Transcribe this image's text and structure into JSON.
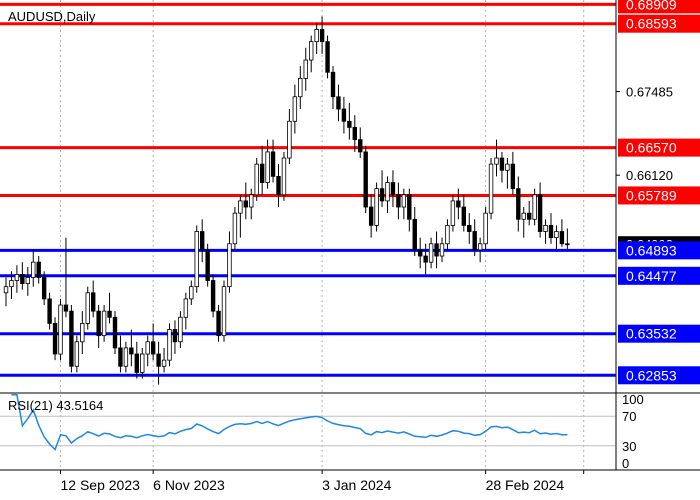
{
  "chart_data": {
    "type": "candlestick",
    "symbol_label": "AUDUSD,Daily",
    "colors": {
      "candle": "#000000",
      "resistance_line": "#ff0000",
      "support_line": "#0000ff",
      "rsi_line": "#1e88e5",
      "rsi_level_line": "#c0c0c0",
      "grid": "#b0b0b0",
      "level_label_text": "#ffffff",
      "price_tag_bg": "#000000"
    },
    "x_axis": {
      "ticks": [
        {
          "index": 10,
          "label": "12 Sep 2023"
        },
        {
          "index": 27,
          "label": "6 Nov 2023"
        },
        {
          "index": 58,
          "label": "3 Jan 2024"
        },
        {
          "index": 88,
          "label": "28 Feb 2024"
        },
        {
          "index": 106,
          "label": ""
        }
      ]
    },
    "price_axis": {
      "ylim": [
        0.6258,
        0.6898
      ],
      "labels": [
        "0.67485",
        "0.66120"
      ],
      "current_price_tag": "0.64993"
    },
    "horizontal_levels": [
      {
        "value": 0.68909,
        "label": "0.68909",
        "kind": "resistance"
      },
      {
        "value": 0.68593,
        "label": "0.68593",
        "kind": "resistance"
      },
      {
        "value": 0.6657,
        "label": "0.66570",
        "kind": "resistance"
      },
      {
        "value": 0.65789,
        "label": "0.65789",
        "kind": "resistance"
      },
      {
        "value": 0.64893,
        "label": "0.64893",
        "kind": "support"
      },
      {
        "value": 0.64477,
        "label": "0.64477",
        "kind": "support"
      },
      {
        "value": 0.63532,
        "label": "0.63532",
        "kind": "support"
      },
      {
        "value": 0.62853,
        "label": "0.62853",
        "kind": "support"
      }
    ],
    "candles_ohlc": [
      [
        0.642,
        0.6445,
        0.6398,
        0.643
      ],
      [
        0.643,
        0.6455,
        0.641,
        0.644
      ],
      [
        0.644,
        0.6465,
        0.642,
        0.645
      ],
      [
        0.645,
        0.647,
        0.6425,
        0.6435
      ],
      [
        0.6435,
        0.6462,
        0.6415,
        0.6445
      ],
      [
        0.6445,
        0.649,
        0.643,
        0.647
      ],
      [
        0.647,
        0.648,
        0.6435,
        0.6445
      ],
      [
        0.6445,
        0.6455,
        0.64,
        0.641
      ],
      [
        0.641,
        0.642,
        0.636,
        0.637
      ],
      [
        0.637,
        0.638,
        0.631,
        0.632
      ],
      [
        0.632,
        0.641,
        0.631,
        0.64
      ],
      [
        0.64,
        0.651,
        0.638,
        0.639
      ],
      [
        0.639,
        0.64,
        0.629,
        0.63
      ],
      [
        0.63,
        0.635,
        0.629,
        0.634
      ],
      [
        0.634,
        0.639,
        0.632,
        0.637
      ],
      [
        0.637,
        0.643,
        0.636,
        0.642
      ],
      [
        0.642,
        0.644,
        0.638,
        0.639
      ],
      [
        0.639,
        0.64,
        0.633,
        0.635
      ],
      [
        0.635,
        0.64,
        0.634,
        0.639
      ],
      [
        0.639,
        0.642,
        0.637,
        0.638
      ],
      [
        0.638,
        0.639,
        0.632,
        0.633
      ],
      [
        0.633,
        0.635,
        0.629,
        0.63
      ],
      [
        0.63,
        0.634,
        0.629,
        0.633
      ],
      [
        0.633,
        0.636,
        0.63,
        0.632
      ],
      [
        0.632,
        0.634,
        0.628,
        0.629
      ],
      [
        0.629,
        0.633,
        0.628,
        0.632
      ],
      [
        0.632,
        0.635,
        0.63,
        0.634
      ],
      [
        0.634,
        0.637,
        0.631,
        0.632
      ],
      [
        0.632,
        0.634,
        0.627,
        0.63
      ],
      [
        0.63,
        0.633,
        0.629,
        0.631
      ],
      [
        0.631,
        0.637,
        0.63,
        0.636
      ],
      [
        0.636,
        0.6375,
        0.632,
        0.634
      ],
      [
        0.634,
        0.639,
        0.633,
        0.638
      ],
      [
        0.638,
        0.642,
        0.636,
        0.641
      ],
      [
        0.641,
        0.644,
        0.64,
        0.643
      ],
      [
        0.643,
        0.653,
        0.642,
        0.652
      ],
      [
        0.652,
        0.654,
        0.647,
        0.649
      ],
      [
        0.649,
        0.65,
        0.643,
        0.644
      ],
      [
        0.644,
        0.645,
        0.638,
        0.639
      ],
      [
        0.639,
        0.64,
        0.634,
        0.635
      ],
      [
        0.635,
        0.644,
        0.634,
        0.643
      ],
      [
        0.643,
        0.652,
        0.642,
        0.65
      ],
      [
        0.65,
        0.656,
        0.649,
        0.655
      ],
      [
        0.655,
        0.658,
        0.651,
        0.657
      ],
      [
        0.657,
        0.66,
        0.654,
        0.656
      ],
      [
        0.656,
        0.659,
        0.654,
        0.658
      ],
      [
        0.658,
        0.664,
        0.657,
        0.663
      ],
      [
        0.663,
        0.666,
        0.658,
        0.66
      ],
      [
        0.66,
        0.667,
        0.659,
        0.665
      ],
      [
        0.665,
        0.667,
        0.66,
        0.661
      ],
      [
        0.661,
        0.663,
        0.656,
        0.658
      ],
      [
        0.658,
        0.665,
        0.657,
        0.664
      ],
      [
        0.664,
        0.672,
        0.663,
        0.67
      ],
      [
        0.67,
        0.676,
        0.668,
        0.674
      ],
      [
        0.674,
        0.679,
        0.672,
        0.677
      ],
      [
        0.677,
        0.682,
        0.675,
        0.68
      ],
      [
        0.68,
        0.684,
        0.678,
        0.683
      ],
      [
        0.683,
        0.686,
        0.681,
        0.685
      ],
      [
        0.685,
        0.6871,
        0.681,
        0.683
      ],
      [
        0.683,
        0.684,
        0.677,
        0.678
      ],
      [
        0.678,
        0.679,
        0.672,
        0.674
      ],
      [
        0.674,
        0.676,
        0.67,
        0.672
      ],
      [
        0.672,
        0.674,
        0.668,
        0.67
      ],
      [
        0.67,
        0.673,
        0.667,
        0.669
      ],
      [
        0.669,
        0.671,
        0.665,
        0.667
      ],
      [
        0.667,
        0.669,
        0.664,
        0.665
      ],
      [
        0.665,
        0.666,
        0.655,
        0.656
      ],
      [
        0.656,
        0.658,
        0.651,
        0.653
      ],
      [
        0.653,
        0.66,
        0.652,
        0.659
      ],
      [
        0.659,
        0.662,
        0.656,
        0.657
      ],
      [
        0.657,
        0.661,
        0.655,
        0.66
      ],
      [
        0.66,
        0.662,
        0.656,
        0.658
      ],
      [
        0.658,
        0.66,
        0.654,
        0.656
      ],
      [
        0.656,
        0.659,
        0.654,
        0.658
      ],
      [
        0.658,
        0.659,
        0.652,
        0.654
      ],
      [
        0.654,
        0.656,
        0.648,
        0.649
      ],
      [
        0.649,
        0.651,
        0.646,
        0.648
      ],
      [
        0.648,
        0.65,
        0.645,
        0.647
      ],
      [
        0.647,
        0.651,
        0.646,
        0.65
      ],
      [
        0.65,
        0.652,
        0.646,
        0.648
      ],
      [
        0.648,
        0.651,
        0.647,
        0.65
      ],
      [
        0.65,
        0.654,
        0.649,
        0.653
      ],
      [
        0.653,
        0.658,
        0.652,
        0.657
      ],
      [
        0.657,
        0.659,
        0.654,
        0.656
      ],
      [
        0.656,
        0.658,
        0.652,
        0.653
      ],
      [
        0.653,
        0.655,
        0.65,
        0.652
      ],
      [
        0.652,
        0.654,
        0.648,
        0.649
      ],
      [
        0.649,
        0.651,
        0.647,
        0.65
      ],
      [
        0.65,
        0.656,
        0.649,
        0.655
      ],
      [
        0.655,
        0.664,
        0.654,
        0.663
      ],
      [
        0.663,
        0.667,
        0.661,
        0.664
      ],
      [
        0.664,
        0.665,
        0.66,
        0.662
      ],
      [
        0.662,
        0.664,
        0.659,
        0.663
      ],
      [
        0.663,
        0.665,
        0.658,
        0.659
      ],
      [
        0.659,
        0.661,
        0.652,
        0.654
      ],
      [
        0.654,
        0.656,
        0.651,
        0.655
      ],
      [
        0.655,
        0.657,
        0.653,
        0.654
      ],
      [
        0.654,
        0.659,
        0.653,
        0.658
      ],
      [
        0.658,
        0.66,
        0.651,
        0.652
      ],
      [
        0.652,
        0.654,
        0.65,
        0.653
      ],
      [
        0.653,
        0.655,
        0.65,
        0.651
      ],
      [
        0.651,
        0.653,
        0.649,
        0.652
      ],
      [
        0.652,
        0.654,
        0.6495,
        0.65
      ],
      [
        0.65,
        0.6525,
        0.649,
        0.6499
      ]
    ],
    "rsi": {
      "label": "RSI(21) 43.5164",
      "period": 21,
      "current": 43.5164,
      "ylim": [
        0,
        100
      ],
      "levels": [
        70,
        30
      ],
      "axis_labels": [
        "100",
        "70",
        "30",
        "0"
      ]
    }
  }
}
